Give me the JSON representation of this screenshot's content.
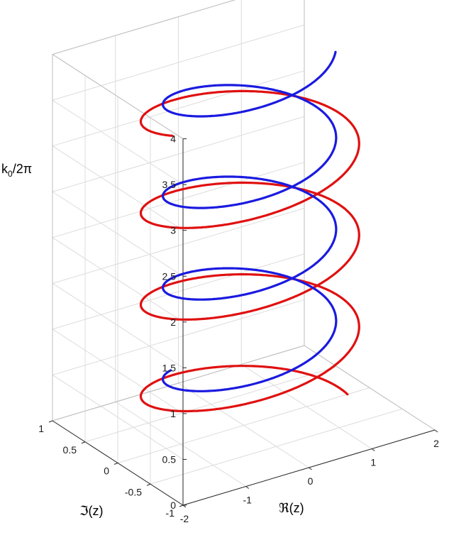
{
  "chart_data": {
    "type": "line",
    "projection": "3d",
    "title": "",
    "xlabel": "ℜ(z)",
    "ylabel": "ℑ(z)",
    "zlabel": "k_0/2π",
    "zlabel_main": "k",
    "zlabel_sub": "0",
    "zlabel_rest": "/2π",
    "xlim": [
      -2,
      2
    ],
    "ylim": [
      -1,
      1
    ],
    "zlim": [
      0,
      4
    ],
    "x_ticks": [
      "-2",
      "-1",
      "0",
      "1",
      "2"
    ],
    "y_ticks": [
      "-1",
      "-0.5",
      "0",
      "0.5",
      "1"
    ],
    "z_ticks": [
      "0",
      "0.5",
      "1",
      "1.5",
      "2",
      "2.5",
      "3",
      "3.5",
      "4"
    ],
    "grid": true,
    "series": [
      {
        "color": "#e01010",
        "k_range": [
          0,
          3.55
        ],
        "turns_per_unit_k": 1,
        "ellipse_x_amplitude": 1.55,
        "ellipse_y_amplitude": 0.75,
        "ellipse_center_x": 0.1,
        "ellipse_center_y": 0.0
      },
      {
        "color": "#1a1ae0",
        "k_range": [
          0.35,
          3.9
        ],
        "turns_per_unit_k": 1,
        "ellipse_x_amplitude": 1.2,
        "ellipse_y_amplitude": 0.65,
        "ellipse_center_x": 0.3,
        "ellipse_center_y": 0.2
      }
    ]
  }
}
